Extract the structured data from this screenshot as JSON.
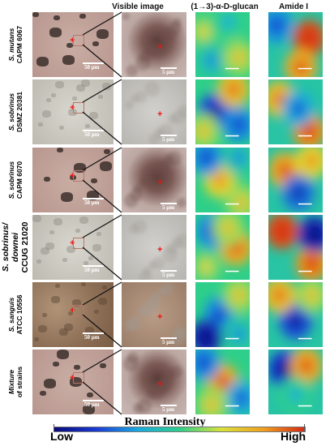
{
  "headers": {
    "visible": "Visible image",
    "glucan": "(1→3)-α-D-glucan",
    "amide": "Amide I"
  },
  "rows": [
    {
      "species": "S. mutans",
      "strain": "CAPM 6067",
      "scale_micro": "50 μm",
      "scale_inset": "5 μm",
      "big": false
    },
    {
      "species": "S. sobrinus",
      "strain": "DSMZ 20381",
      "scale_micro": "50 μm",
      "scale_inset": "5 μm",
      "big": false
    },
    {
      "species": "S. sobrinus",
      "strain": "CAPM 6070",
      "scale_micro": "50 μm",
      "scale_inset": "5 μm",
      "big": false
    },
    {
      "species": "S. sobrinus/",
      "strain": "downei",
      "strain2": "CCUG 21020",
      "scale_micro": "50 μm",
      "scale_inset": "5 μm",
      "big": true
    },
    {
      "species": "S. sanguis",
      "strain": "ATCC 10556",
      "scale_micro": "50 μm",
      "scale_inset": "5 μm",
      "big": false
    },
    {
      "species": "Mixture",
      "strain": "of strains",
      "scale_micro": "50 μm",
      "scale_inset": "5 μm",
      "big": false
    }
  ],
  "colorbar": {
    "title": "Raman Intensity",
    "low": "Low",
    "high": "High",
    "colors": [
      "#0a0a78",
      "#1a3ad6",
      "#19a9e0",
      "#2ecf8a",
      "#d8e23a",
      "#f0a020",
      "#d42a14"
    ]
  }
}
